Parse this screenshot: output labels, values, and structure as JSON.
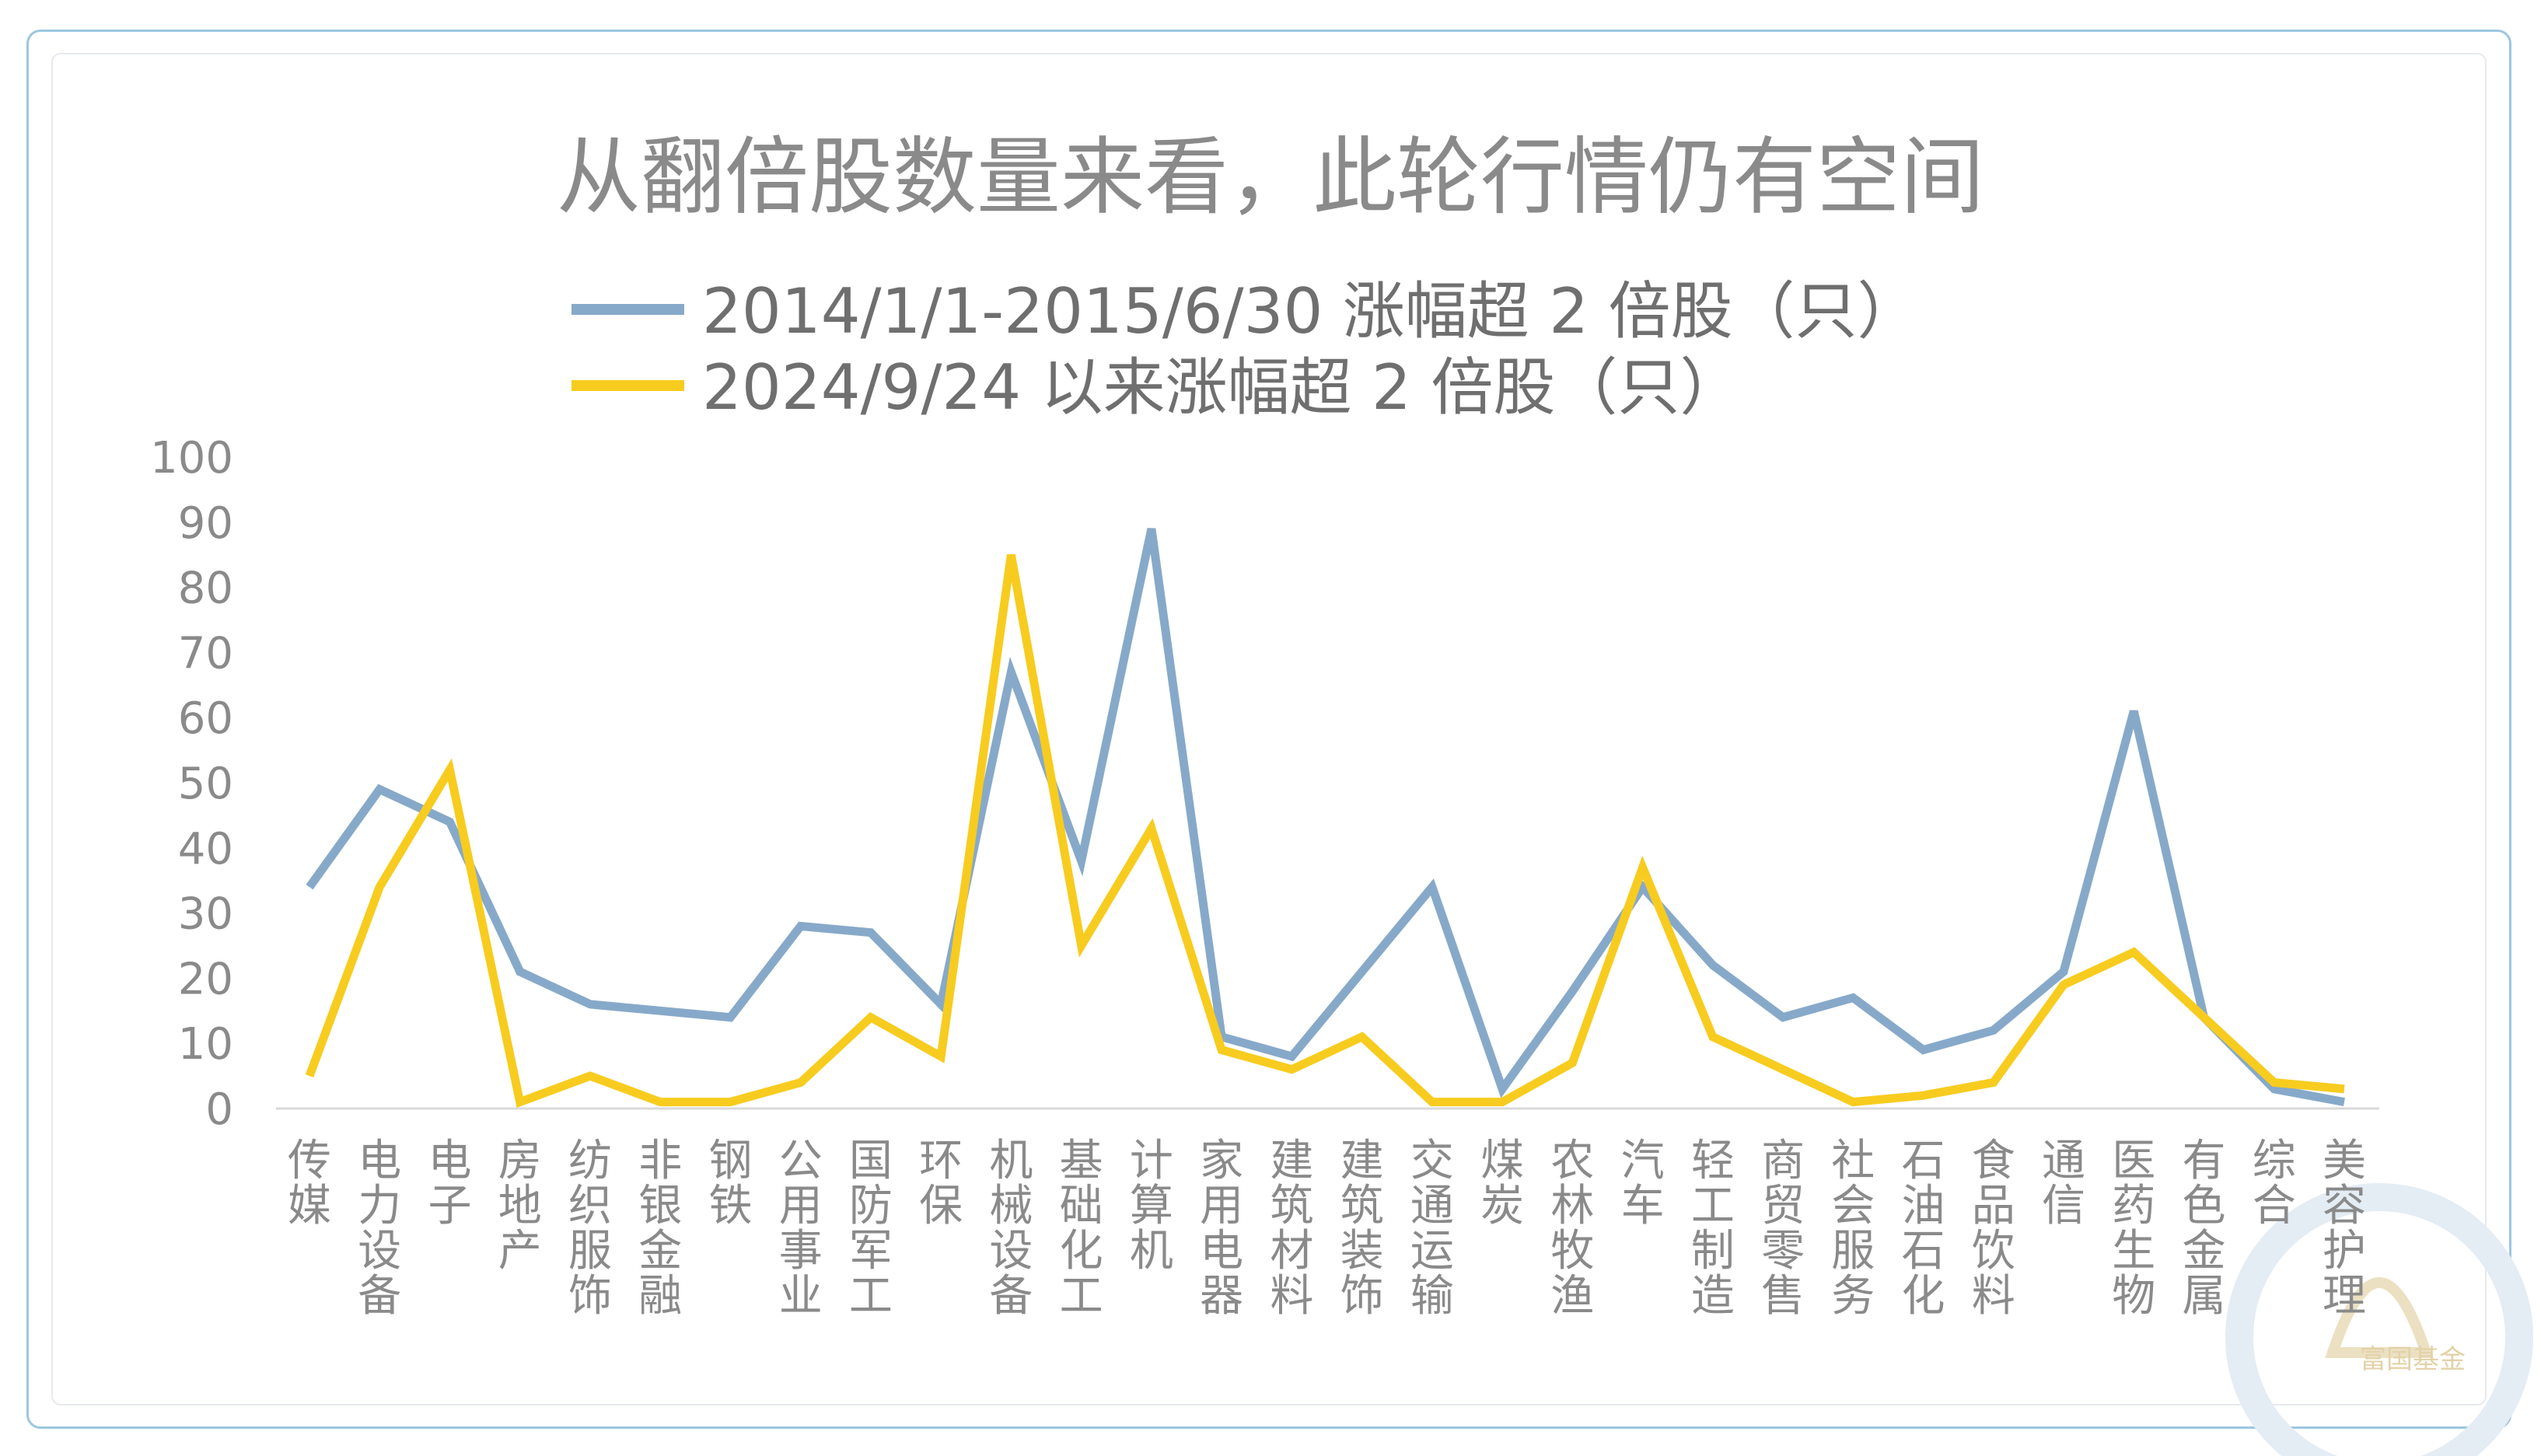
{
  "chart_data": {
    "type": "line",
    "title": "从翻倍股数量来看，此轮行情仍有空间",
    "xlabel": "",
    "ylabel": "",
    "ylim": [
      0,
      100
    ],
    "yticks": [
      0,
      10,
      20,
      30,
      40,
      50,
      60,
      70,
      80,
      90,
      100
    ],
    "grid": false,
    "legend_position": "top",
    "categories": [
      "传媒",
      "电力设备",
      "电子",
      "房地产",
      "纺织服饰",
      "非银金融",
      "钢铁",
      "公用事业",
      "国防军工",
      "环保",
      "机械设备",
      "基础化工",
      "计算机",
      "家用电器",
      "建筑材料",
      "建筑装饰",
      "交通运输",
      "煤炭",
      "农林牧渔",
      "汽车",
      "轻工制造",
      "商贸零售",
      "社会服务",
      "石油石化",
      "食品饮料",
      "通信",
      "医药生物",
      "有色金属",
      "综合",
      "美容护理"
    ],
    "series": [
      {
        "name": "2014/1/1-2015/6/30 涨幅超 2 倍股（只）",
        "color": "#87a9c9",
        "values": [
          34,
          49,
          44,
          21,
          16,
          15,
          14,
          28,
          27,
          16,
          67,
          38,
          89,
          11,
          8,
          21,
          34,
          3,
          18,
          34,
          22,
          14,
          17,
          9,
          12,
          21,
          61,
          14,
          3,
          1
        ]
      },
      {
        "name": "2024/9/24 以来涨幅超 2 倍股（只）",
        "color": "#f7cc1f",
        "values": [
          5,
          34,
          52,
          1,
          5,
          1,
          1,
          4,
          14,
          8,
          85,
          25,
          43,
          9,
          6,
          11,
          1,
          1,
          7,
          37,
          11,
          6,
          1,
          2,
          4,
          19,
          24,
          14,
          4,
          3
        ]
      }
    ]
  },
  "watermark": {
    "text": "富国基金",
    "color": "#e3d2a8"
  }
}
